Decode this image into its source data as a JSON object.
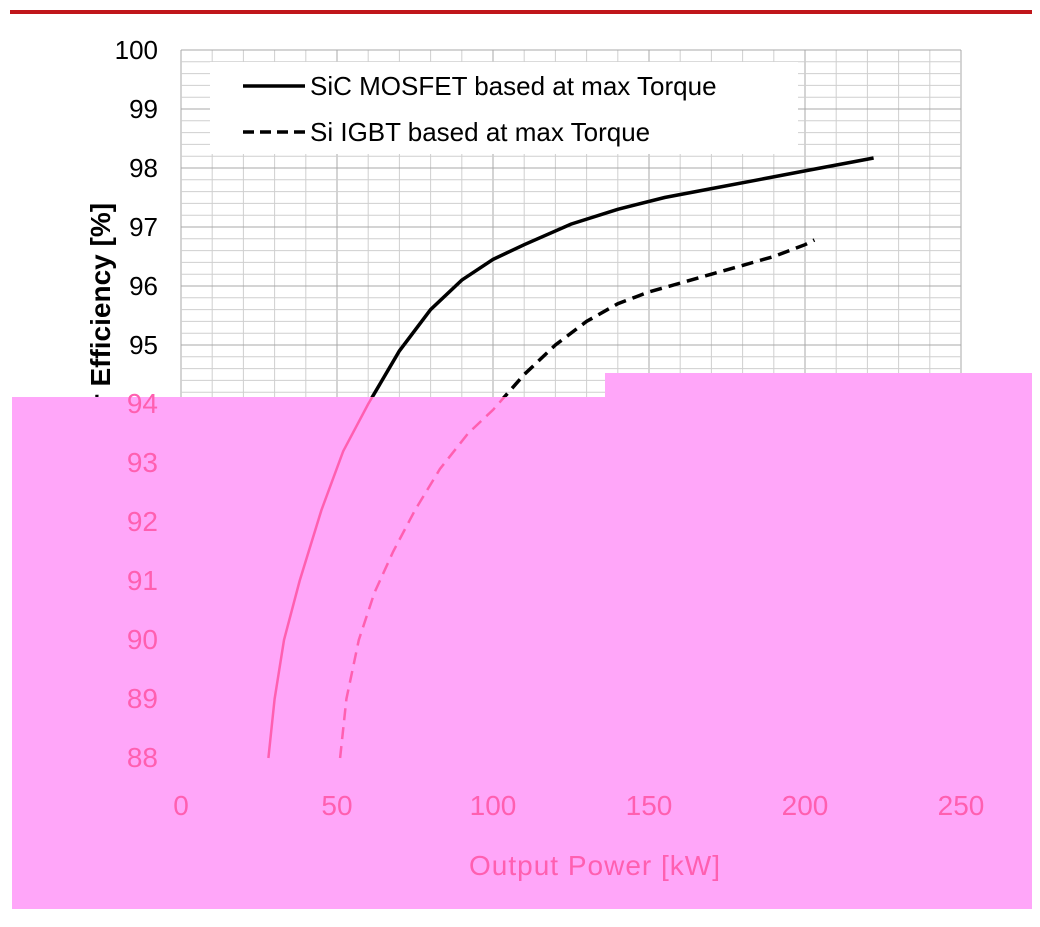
{
  "chart_data": {
    "type": "line",
    "title": "",
    "xlabel": "Output Power [kW]",
    "ylabel": "Inverter Efficiency [%]",
    "xlim": [
      0,
      250
    ],
    "ylim": [
      88,
      100
    ],
    "xticks": [
      "0",
      "50",
      "100",
      "150",
      "200",
      "250"
    ],
    "yticks": [
      "88",
      "89",
      "90",
      "91",
      "92",
      "93",
      "94",
      "95",
      "96",
      "97",
      "98",
      "99",
      "100"
    ],
    "grid": true,
    "legend_position": "top-left",
    "series": [
      {
        "name": "SiC MOSFET based at max Torque",
        "style": "solid",
        "x": [
          28,
          30,
          33,
          38,
          45,
          52,
          60,
          70,
          80,
          90,
          100,
          110,
          125,
          140,
          155,
          170,
          185,
          200,
          215,
          222
        ],
        "y": [
          88.0,
          89.0,
          90.0,
          91.0,
          92.2,
          93.2,
          94.0,
          94.9,
          95.6,
          96.1,
          96.45,
          96.7,
          97.05,
          97.3,
          97.5,
          97.65,
          97.8,
          97.95,
          98.1,
          98.17
        ]
      },
      {
        "name": "Si IGBT based at max Torque",
        "style": "dashed",
        "x": [
          51,
          53,
          57,
          62,
          68,
          75,
          83,
          92,
          100,
          110,
          120,
          130,
          140,
          150,
          160,
          170,
          180,
          190,
          200,
          203
        ],
        "y": [
          88.0,
          89.0,
          90.0,
          90.8,
          91.5,
          92.2,
          92.9,
          93.5,
          93.9,
          94.5,
          95.0,
          95.4,
          95.7,
          95.9,
          96.05,
          96.2,
          96.35,
          96.5,
          96.7,
          96.78
        ]
      }
    ]
  },
  "colors": {
    "top_rule": "#c0161b",
    "overlay": "#ffa6f9",
    "overlay_text": "#ff5fb0",
    "line": "#000000"
  }
}
